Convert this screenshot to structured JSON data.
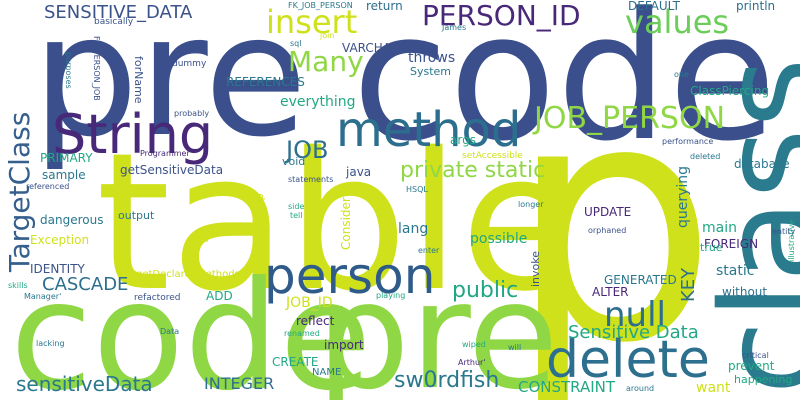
{
  "background": "#ffffff",
  "words": [
    {
      "text": "p",
      "color": "#cfe11a"
    },
    {
      "text": "table",
      "color": "#cfe11a"
    },
    {
      "text": "pre",
      "color": "#3b4f8c"
    },
    {
      "text": "code",
      "color": "#3b4f8c"
    },
    {
      "text": "class",
      "color": "#2a7b8e"
    },
    {
      "text": "code",
      "color": "#8fd744"
    },
    {
      "text": "pre",
      "color": "#8fd744"
    },
    {
      "text": "String",
      "color": "#482878"
    },
    {
      "text": "method",
      "color": "#2c6e8e"
    },
    {
      "text": "person",
      "color": "#2f5b8a"
    },
    {
      "text": "delete",
      "color": "#2d6f8e"
    },
    {
      "text": "JOB_PERSON",
      "color": "#8fd744"
    },
    {
      "text": "PERSON_ID",
      "color": "#482878"
    },
    {
      "text": "values",
      "color": "#6ccd5a"
    },
    {
      "text": "TargetClass",
      "color": "#355f8d"
    },
    {
      "text": "null",
      "color": "#2c6e8e"
    },
    {
      "text": "Many",
      "color": "#8fd744"
    },
    {
      "text": "insert",
      "color": "#cfe11a"
    },
    {
      "text": "SENSITIVE_DATA",
      "color": "#3b528b"
    },
    {
      "text": "JOB",
      "color": "#2d6f8e"
    },
    {
      "text": "public",
      "color": "#21a685"
    },
    {
      "text": "private static",
      "color": "#8fd744"
    },
    {
      "text": "sw0rdfish",
      "color": "#2a788e"
    },
    {
      "text": "sensitiveData",
      "color": "#2a788e"
    },
    {
      "text": "CASCADE",
      "color": "#2d6f8e"
    },
    {
      "text": "Sensitive Data",
      "color": "#22a884"
    },
    {
      "text": "KEY",
      "color": "#2d6f8e"
    },
    {
      "text": "INTEGER",
      "color": "#2d6f8e"
    },
    {
      "text": "CONSTRAINT",
      "color": "#22a884"
    },
    {
      "text": "everything",
      "color": "#22a884"
    },
    {
      "text": "REFERENCES",
      "color": "#2a788e"
    },
    {
      "text": "JOB_ID",
      "color": "#cfe11a"
    },
    {
      "text": "possible",
      "color": "#22a884"
    },
    {
      "text": "ClassPiercing",
      "color": "#22a884"
    },
    {
      "text": "database",
      "color": "#2a788e"
    },
    {
      "text": "main",
      "color": "#22a884"
    },
    {
      "text": "querying",
      "color": "#2a788e"
    },
    {
      "text": "FOREIGN",
      "color": "#482878"
    },
    {
      "text": "GENERATED",
      "color": "#2a788e"
    },
    {
      "text": "static",
      "color": "#2a788e"
    },
    {
      "text": "without",
      "color": "#2d6f8e"
    },
    {
      "text": "ALTER",
      "color": "#482878"
    },
    {
      "text": "UPDATE",
      "color": "#482878"
    },
    {
      "text": "lang",
      "color": "#2a788e"
    },
    {
      "text": "Consider",
      "color": "#cfe11a"
    },
    {
      "text": "relationship",
      "color": "#cfe11a"
    },
    {
      "text": "java",
      "color": "#3b528b"
    },
    {
      "text": "import",
      "color": "#482878"
    },
    {
      "text": "reflect",
      "color": "#482878"
    },
    {
      "text": "CREATE",
      "color": "#22a884"
    },
    {
      "text": "NAME",
      "color": "#2a788e"
    },
    {
      "text": "ADD",
      "color": "#22a884"
    },
    {
      "text": "IDENTITY",
      "color": "#3b528b"
    },
    {
      "text": "Exception",
      "color": "#cfe11a"
    },
    {
      "text": "dangerous",
      "color": "#2a788e"
    },
    {
      "text": "sample",
      "color": "#2a788e"
    },
    {
      "text": "PRIMARY",
      "color": "#22a884"
    },
    {
      "text": "output",
      "color": "#2a788e"
    },
    {
      "text": "getSensitiveData",
      "color": "#3b528b"
    },
    {
      "text": "void",
      "color": "#2a788e"
    },
    {
      "text": "args",
      "color": "#22a884"
    },
    {
      "text": "throws",
      "color": "#3b528b"
    },
    {
      "text": "System",
      "color": "#2a788e"
    },
    {
      "text": "VARCHAR",
      "color": "#3b528b"
    },
    {
      "text": "forName",
      "color": "#3b528b"
    },
    {
      "text": "return",
      "color": "#2d6f8e"
    },
    {
      "text": "DEFAULT",
      "color": "#2d6f8e"
    },
    {
      "text": "println",
      "color": "#2d6f8e"
    },
    {
      "text": "want",
      "color": "#cfe11a"
    },
    {
      "text": "prevent",
      "color": "#22a884"
    },
    {
      "text": "happening",
      "color": "#22a884"
    },
    {
      "text": "invoke",
      "color": "#3b528b"
    },
    {
      "text": "true",
      "color": "#22a884"
    },
    {
      "text": "getDeclaredMethods",
      "color": "#cfe11a"
    },
    {
      "text": "setAccessible",
      "color": "#cfe11a"
    },
    {
      "text": "refactored",
      "color": "#3b528b"
    },
    {
      "text": "basically",
      "color": "#3b528b"
    },
    {
      "text": "FK_JOB_PERSON",
      "color": "#2a788e"
    },
    {
      "text": "FK_PERSON_JOB",
      "color": "#3b528b"
    },
    {
      "text": "purposes",
      "color": "#2a788e"
    },
    {
      "text": "dummy",
      "color": "#3b528b"
    },
    {
      "text": "sql",
      "color": "#2a788e"
    },
    {
      "text": "join",
      "color": "#cfe11a"
    },
    {
      "text": "James",
      "color": "#2a788e"
    },
    {
      "text": "probably",
      "color": "#3b528b"
    },
    {
      "text": "Programmer'",
      "color": "#482878"
    },
    {
      "text": "statements",
      "color": "#3b528b"
    },
    {
      "text": "side",
      "color": "#22a884"
    },
    {
      "text": "tell",
      "color": "#22a884"
    },
    {
      "text": "HSQL",
      "color": "#2a788e"
    },
    {
      "text": "referenced",
      "color": "#3b528b"
    },
    {
      "text": "skills",
      "color": "#22a884"
    },
    {
      "text": "Manager'",
      "color": "#2a788e"
    },
    {
      "text": "two",
      "color": "#cfe11a"
    },
    {
      "text": "lacking",
      "color": "#2a788e"
    },
    {
      "text": "Data",
      "color": "#2a788e"
    },
    {
      "text": "renamed",
      "color": "#22a884"
    },
    {
      "text": "playing",
      "color": "#22a884"
    },
    {
      "text": "enter",
      "color": "#2a788e"
    },
    {
      "text": "wiped",
      "color": "#22a884"
    },
    {
      "text": "will",
      "color": "#2a788e"
    },
    {
      "text": "Arthur'",
      "color": "#482878"
    },
    {
      "text": "longer",
      "color": "#2a788e"
    },
    {
      "text": "orphaned",
      "color": "#3b528b"
    },
    {
      "text": "entity",
      "color": "#3b528b"
    },
    {
      "text": "illustrative",
      "color": "#22a884"
    },
    {
      "text": "performance",
      "color": "#3b528b"
    },
    {
      "text": "deleted",
      "color": "#2a788e"
    },
    {
      "text": "one",
      "color": "#2a788e"
    },
    {
      "text": "critical",
      "color": "#3b528b"
    },
    {
      "text": "around",
      "color": "#2a788e"
    }
  ]
}
